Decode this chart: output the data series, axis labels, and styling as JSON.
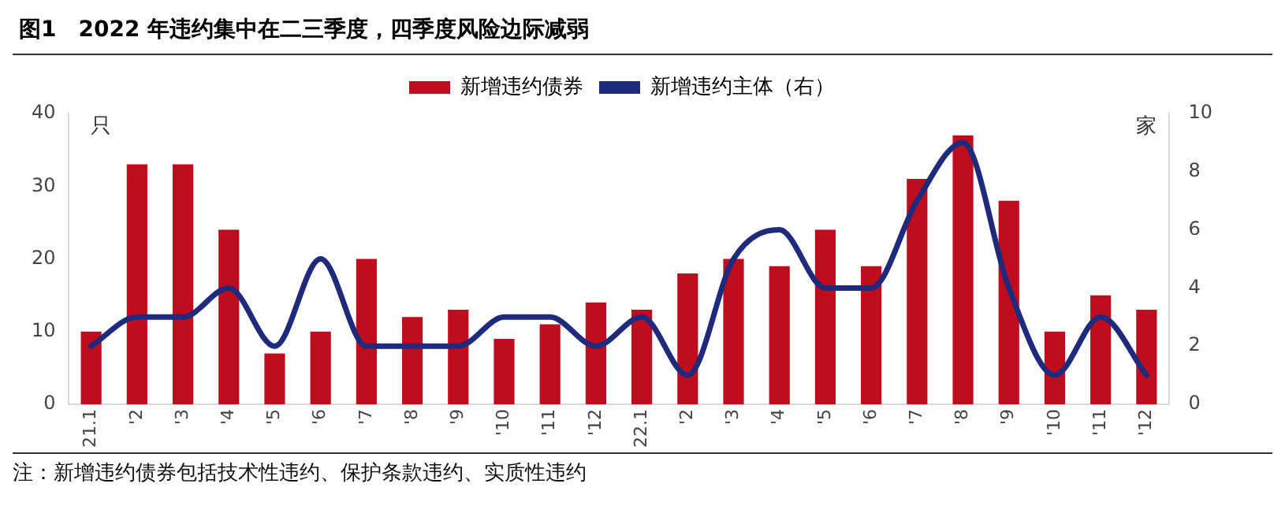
{
  "chart_data": {
    "type": "bar",
    "title": "图1　2022 年违约集中在二三季度，四季度风险边际减弱",
    "ylabel": "只",
    "y2label": "家",
    "categories": [
      "21.1",
      "'2",
      "'3",
      "'4",
      "'5",
      "'6",
      "'7",
      "'8",
      "'9",
      "'10",
      "'11",
      "'12",
      "22.1",
      "'2",
      "'3",
      "'4",
      "'5",
      "'6",
      "'7",
      "'8",
      "'9",
      "'10",
      "'11",
      "'12"
    ],
    "series": [
      {
        "name": "新增违约债券",
        "color": "#c00d1e",
        "values": [
          10,
          33,
          33,
          24,
          7,
          10,
          20,
          12,
          13,
          9,
          11,
          14,
          13,
          18,
          20,
          19,
          24,
          19,
          31,
          37,
          28,
          10,
          15,
          13
        ]
      },
      {
        "name": "新增违约主体（右）",
        "type": "line",
        "axis": "y2",
        "color": "#1f2a7c",
        "values": [
          2,
          3,
          3,
          4,
          2,
          5,
          2,
          2,
          2,
          3,
          3,
          2,
          3,
          1,
          5,
          6,
          4,
          4,
          7,
          9,
          4,
          1,
          3,
          1
        ]
      }
    ],
    "ylim": [
      0,
      40
    ],
    "yticks": [
      0,
      10,
      20,
      30,
      40
    ],
    "y2lim": [
      0,
      10
    ],
    "y2ticks": [
      0,
      2,
      4,
      6,
      8,
      10
    ],
    "grid": false,
    "legend": "top",
    "marker": "none",
    "line_style": "solid",
    "annotations": [
      "注：新增违约债券包括技术性违约、保护条款违约、实质性违约"
    ]
  }
}
